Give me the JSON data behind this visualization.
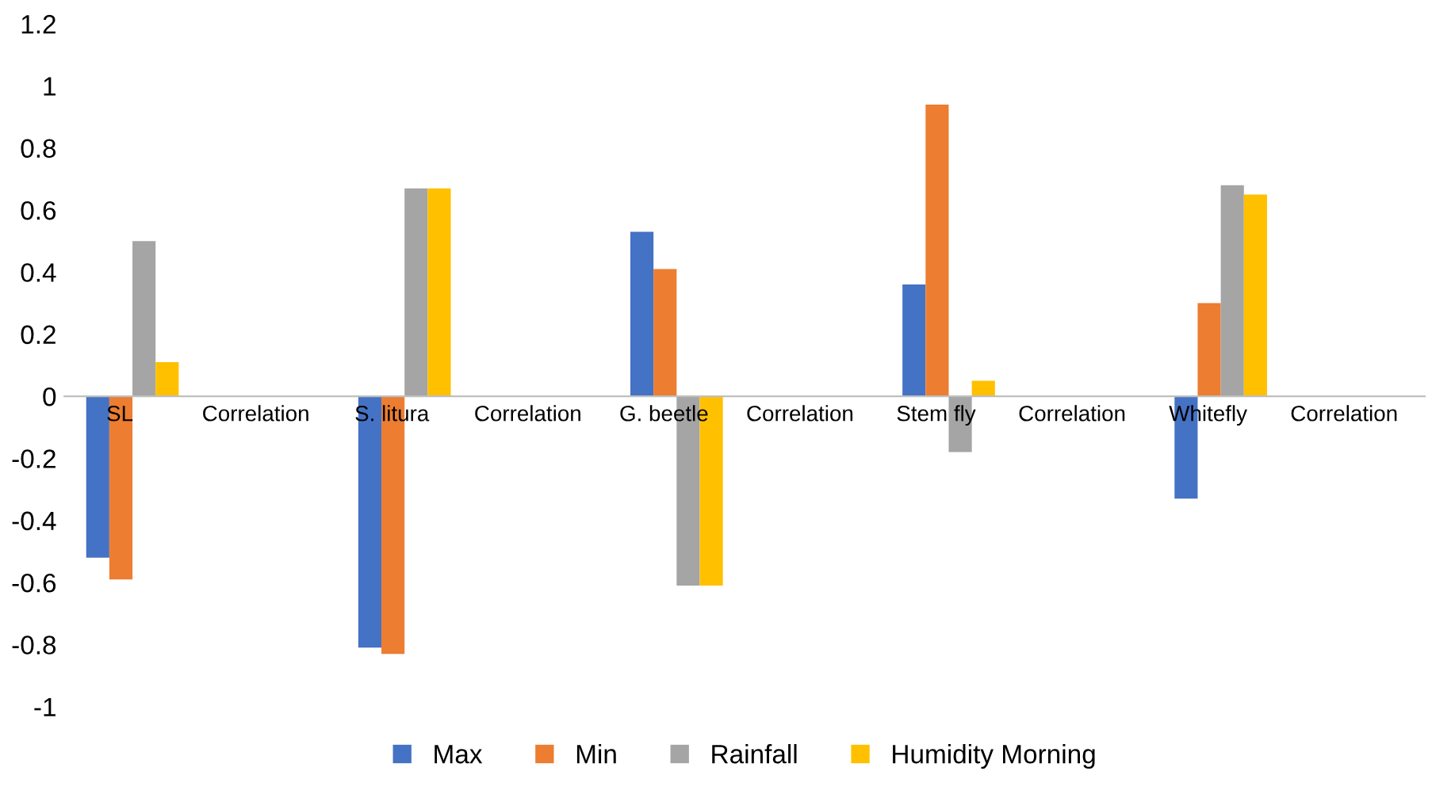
{
  "chart_data": {
    "type": "bar",
    "categories": [
      "SL",
      "Correlation",
      "S. litura",
      "Correlation",
      "G. beetle",
      "Correlation",
      "Stem fly",
      "Correlation",
      "Whitefly",
      "Correlation"
    ],
    "series": [
      {
        "name": "Max",
        "color": "#4472c4",
        "values": [
          -0.52,
          null,
          -0.81,
          null,
          0.53,
          null,
          0.36,
          null,
          -0.33,
          null
        ]
      },
      {
        "name": "Min",
        "color": "#ed7d31",
        "values": [
          -0.59,
          null,
          -0.83,
          null,
          0.41,
          null,
          0.94,
          null,
          0.3,
          null
        ]
      },
      {
        "name": "Rainfall",
        "color": "#a5a5a5",
        "values": [
          0.5,
          null,
          0.67,
          null,
          -0.61,
          null,
          -0.18,
          null,
          0.68,
          null
        ]
      },
      {
        "name": "Humidity Morning",
        "color": "#ffc000",
        "values": [
          0.11,
          null,
          0.67,
          null,
          -0.61,
          null,
          0.05,
          null,
          0.65,
          null
        ]
      }
    ],
    "ylim": [
      -1,
      1.2
    ],
    "yticks": [
      -1,
      -0.8,
      -0.6,
      -0.4,
      -0.2,
      0,
      0.2,
      0.4,
      0.6,
      0.8,
      1,
      1.2
    ],
    "grid": false,
    "legend": "bottom"
  }
}
